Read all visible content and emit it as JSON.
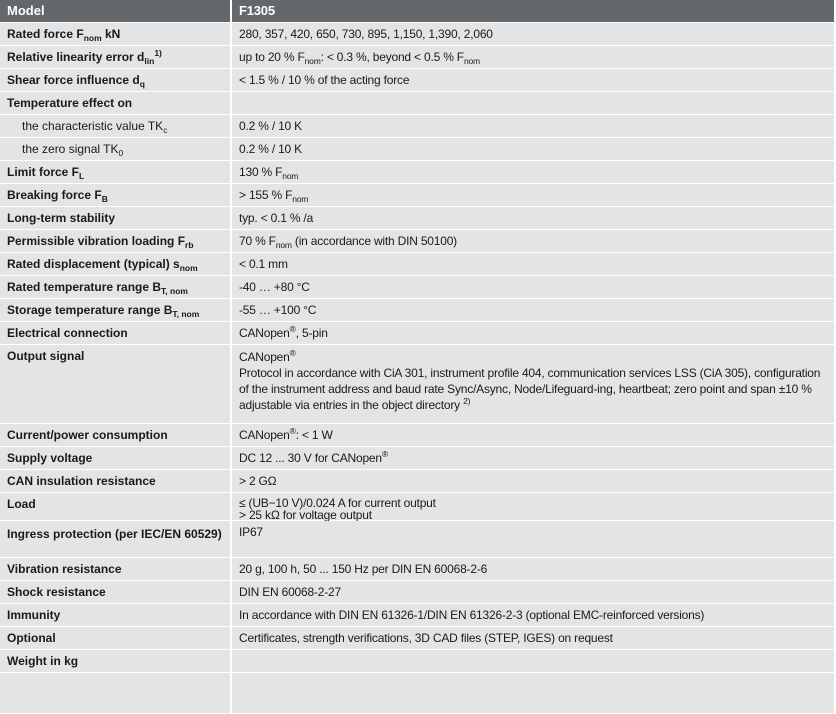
{
  "header": {
    "label": "Model",
    "value": "F1305"
  },
  "rows": [
    {
      "label": [
        {
          "t": "Rated force F"
        },
        {
          "sub": "nom"
        },
        {
          "t": " kN"
        }
      ],
      "value": [
        {
          "t": "280, 357, 420, 650, 730, 895, 1,150, 1,390, 2,060"
        }
      ]
    },
    {
      "label": [
        {
          "t": "Relative linearity error d"
        },
        {
          "sub": "lin"
        },
        {
          "sup": "1)"
        }
      ],
      "value": [
        {
          "t": "up to 20 % F"
        },
        {
          "sub": "nom"
        },
        {
          "t": ": < 0.3 %, beyond < 0.5 % F"
        },
        {
          "sub": "nom"
        }
      ]
    },
    {
      "label": [
        {
          "t": "Shear force influence d"
        },
        {
          "sub": "q"
        }
      ],
      "value": [
        {
          "t": "< 1.5 % / 10 % of the acting force"
        }
      ]
    },
    {
      "label": [
        {
          "t": "Temperature effect on"
        }
      ],
      "value": []
    },
    {
      "indent": true,
      "label": [
        {
          "t": "the characteristic value TK"
        },
        {
          "sub": "c"
        }
      ],
      "value": [
        {
          "t": "0.2 % / 10 K"
        }
      ]
    },
    {
      "indent": true,
      "label": [
        {
          "t": "the zero signal TK"
        },
        {
          "sub": "0"
        }
      ],
      "value": [
        {
          "t": "0.2 % / 10 K"
        }
      ]
    },
    {
      "label": [
        {
          "t": "Limit force F"
        },
        {
          "sub": "L"
        }
      ],
      "value": [
        {
          "t": "130 % F"
        },
        {
          "sub": "nom"
        }
      ]
    },
    {
      "label": [
        {
          "t": "Breaking force F"
        },
        {
          "sub": "B"
        }
      ],
      "value": [
        {
          "t": "> 155 % F"
        },
        {
          "sub": "nom"
        }
      ]
    },
    {
      "label": [
        {
          "t": "Long-term stability"
        }
      ],
      "value": [
        {
          "t": "typ. < 0.1 % /a"
        }
      ]
    },
    {
      "label": [
        {
          "t": "Permissible vibration loading F"
        },
        {
          "sub": "rb"
        }
      ],
      "value": [
        {
          "t": "70 % F"
        },
        {
          "sub": "nom"
        },
        {
          "t": " (in accordance with DIN 50100)"
        }
      ]
    },
    {
      "label": [
        {
          "t": "Rated displacement (typical) s"
        },
        {
          "sub": "nom"
        }
      ],
      "value": [
        {
          "t": "< 0.1 mm"
        }
      ]
    },
    {
      "label": [
        {
          "t": "Rated temperature range B"
        },
        {
          "sub": "T, nom"
        }
      ],
      "value": [
        {
          "t": "-40 … +80 °C"
        }
      ]
    },
    {
      "label": [
        {
          "t": "Storage temperature range B"
        },
        {
          "sub": "T, nom"
        }
      ],
      "value": [
        {
          "t": "-55 … +100 °C"
        }
      ]
    },
    {
      "label": [
        {
          "t": "Electrical connection"
        }
      ],
      "value": [
        {
          "t": "CANopen"
        },
        {
          "sup": "®"
        },
        {
          "t": ", 5-pin"
        }
      ]
    },
    {
      "label": [
        {
          "t": "Output signal"
        }
      ],
      "value": [
        {
          "t": "CANopen"
        },
        {
          "sup": "®"
        },
        {
          "br": true
        },
        {
          "t": "Protocol in accordance with CiA 301, instrument profile 404, communication services LSS (CiA 305), configuration of the instrument address and baud rate Sync/Async, Node/Lifeguard-ing, heartbeat; zero point and span ±10 % adjustable via entries in the object directory "
        },
        {
          "sup": "2)"
        }
      ]
    },
    {
      "label": [
        {
          "t": "Current/power consumption"
        }
      ],
      "value": [
        {
          "t": "CANopen"
        },
        {
          "sup": "®"
        },
        {
          "t": ": < 1 W"
        }
      ]
    },
    {
      "label": [
        {
          "t": "Supply voltage"
        }
      ],
      "value": [
        {
          "t": "DC 12 ... 30 V for CANopen"
        },
        {
          "sup": "®"
        }
      ]
    },
    {
      "label": [
        {
          "t": "CAN insulation resistance"
        }
      ],
      "value": [
        {
          "t": "> 2 GΩ"
        }
      ]
    },
    {
      "label": [
        {
          "t": "Load"
        }
      ],
      "value": [
        {
          "t": "≤ (UB−10 V)/0.024 A for current output"
        },
        {
          "br": true
        },
        {
          "t": "> 25 kΩ for voltage output"
        }
      ]
    },
    {
      "label": [
        {
          "t": "Ingress protection (per IEC/EN 60529)"
        }
      ],
      "value": [
        {
          "t": "IP67"
        }
      ]
    },
    {
      "label": [
        {
          "t": "Vibration resistance"
        }
      ],
      "value": [
        {
          "t": "20 g, 100 h, 50 ... 150 Hz per DIN EN 60068-2-6"
        }
      ]
    },
    {
      "label": [
        {
          "t": "Shock resistance"
        }
      ],
      "value": [
        {
          "t": "DIN EN 60068-2-27"
        }
      ]
    },
    {
      "label": [
        {
          "t": "Immunity"
        }
      ],
      "value": [
        {
          "t": "In accordance with DIN EN 61326-1/DIN EN 61326-2-3 (optional EMC-reinforced versions)"
        }
      ]
    },
    {
      "label": [
        {
          "t": "Optional"
        }
      ],
      "value": [
        {
          "t": "Certificates, strength verifications, 3D CAD files (STEP, IGES) on request"
        }
      ]
    },
    {
      "label": [
        {
          "t": "Weight in kg"
        }
      ],
      "value": []
    },
    {
      "label": [],
      "value": []
    }
  ]
}
